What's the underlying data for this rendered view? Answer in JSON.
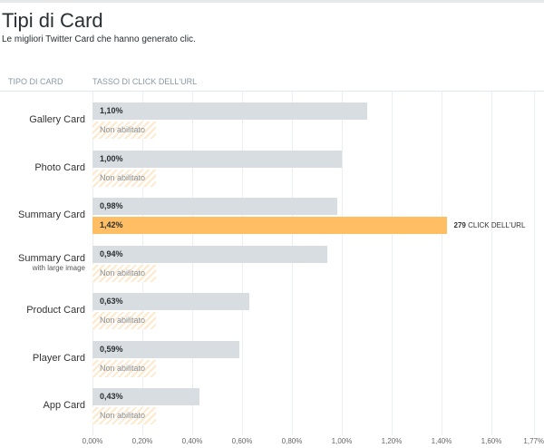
{
  "header": {
    "title": "Tipi di Card",
    "subtitle": "Le migliori Twitter Card che hanno generato clic."
  },
  "columns": {
    "type": "TIPO DI CARD",
    "rate": "TASSO DI CLICK DELL'URL"
  },
  "chart_data": {
    "type": "bar",
    "orientation": "horizontal",
    "categories": [
      "Gallery Card",
      "Photo Card",
      "Summary Card",
      "Summary Card",
      "Product Card",
      "Player Card",
      "App Card"
    ],
    "category_sublabels": [
      "",
      "",
      "",
      "with large image",
      "",
      "",
      ""
    ],
    "series": [
      {
        "values": [
          1.1,
          1.0,
          0.98,
          0.94,
          0.63,
          0.59,
          0.43
        ],
        "labels": [
          "1,10%",
          "1,00%",
          "0,98%",
          "0,94%",
          "0,63%",
          "0,59%",
          "0,43%"
        ],
        "color": "#d8dde1"
      },
      {
        "values": [
          null,
          null,
          1.42,
          null,
          null,
          null,
          null
        ],
        "labels": [
          "Non abilitato",
          "Non abilitato",
          "1,42%",
          "Non abilitato",
          "Non abilitato",
          "Non abilitato",
          "Non abilitato"
        ],
        "color": "#ffbe63"
      }
    ],
    "annotation": {
      "count": "279",
      "text": "CLICK DELL'URL"
    },
    "xticks": [
      "0,00%",
      "0,20%",
      "0,40%",
      "0,60%",
      "0,80%",
      "1,00%",
      "1,20%",
      "1,40%",
      "1,60%",
      "1,77%"
    ],
    "xtick_values": [
      0,
      0.2,
      0.4,
      0.6,
      0.8,
      1.0,
      1.2,
      1.4,
      1.6,
      1.77
    ],
    "xlim": [
      0,
      1.77
    ],
    "grid": true
  }
}
